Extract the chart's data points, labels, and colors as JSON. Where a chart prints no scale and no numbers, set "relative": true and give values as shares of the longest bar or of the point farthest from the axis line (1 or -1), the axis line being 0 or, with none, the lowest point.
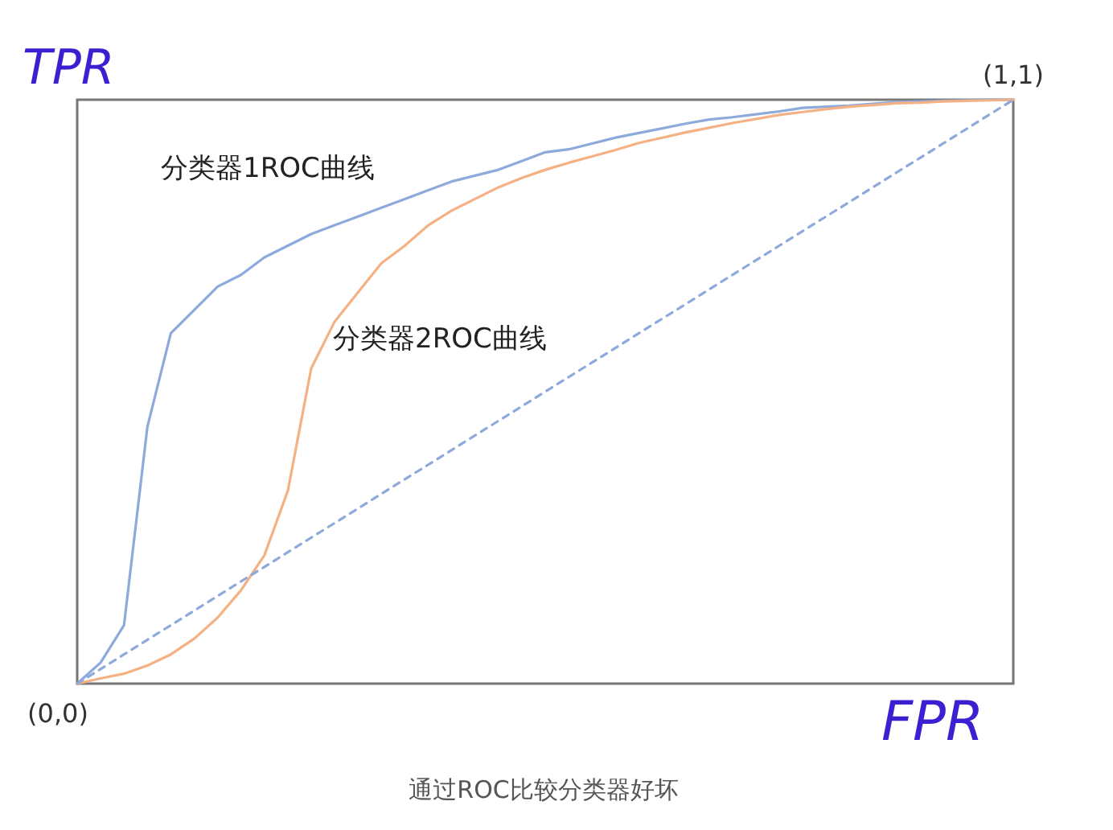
{
  "chart_data": {
    "type": "line",
    "xlabel": "FPR",
    "ylabel": "TPR",
    "relative": true,
    "categories": [
      null,
      null,
      null,
      null,
      null,
      null,
      null,
      null,
      null,
      null,
      null,
      null,
      null,
      null,
      null,
      null,
      null,
      null,
      null,
      null,
      null,
      null,
      null,
      null,
      null,
      null,
      null,
      null,
      null,
      null,
      null,
      null,
      null,
      null,
      null,
      null,
      null,
      null,
      null,
      null,
      null
    ],
    "series": [
      {
        "name": "分类器1ROC曲线",
        "color": "#8eaadb",
        "values": [
          0,
          0.036,
          0.1,
          0.44,
          0.6,
          0.64,
          0.68,
          0.7,
          0.73,
          0.75,
          0.77,
          0.785,
          0.8,
          0.815,
          0.83,
          0.845,
          0.86,
          0.87,
          0.88,
          0.895,
          0.91,
          0.915,
          0.925,
          0.935,
          0.943,
          0.951,
          0.959,
          0.966,
          0.97,
          0.975,
          0.98,
          0.986,
          0.988,
          0.99,
          0.993,
          0.996,
          0.997,
          0.998,
          0.999,
          1,
          1
        ]
      },
      {
        "name": "分类器2ROC曲线",
        "color": "#f4b183",
        "values": [
          0,
          0.009,
          0.017,
          0.031,
          0.05,
          0.077,
          0.113,
          0.16,
          0.22,
          0.33,
          0.54,
          0.62,
          0.67,
          0.72,
          0.75,
          0.785,
          0.81,
          0.83,
          0.85,
          0.866,
          0.88,
          0.892,
          0.903,
          0.914,
          0.926,
          0.935,
          0.944,
          0.952,
          0.96,
          0.967,
          0.974,
          0.979,
          0.984,
          0.988,
          0.991,
          0.994,
          0.995,
          0.997,
          0.998,
          0.999,
          1
        ]
      },
      {
        "color": "#8eaadb",
        "line_style": "dashed",
        "values": [
          0,
          0.025,
          0.05,
          0.075,
          0.1,
          0.125,
          0.15,
          0.175,
          0.2,
          0.225,
          0.25,
          0.275,
          0.3,
          0.325,
          0.35,
          0.375,
          0.4,
          0.425,
          0.45,
          0.475,
          0.5,
          0.525,
          0.55,
          0.575,
          0.6,
          0.625,
          0.65,
          0.675,
          0.7,
          0.725,
          0.75,
          0.775,
          0.8,
          0.825,
          0.85,
          0.875,
          0.9,
          0.925,
          0.95,
          0.975,
          1
        ]
      }
    ],
    "annotations": [
      "(0,0)",
      "(1,1)",
      "通过ROC比较分类器好坏"
    ]
  }
}
